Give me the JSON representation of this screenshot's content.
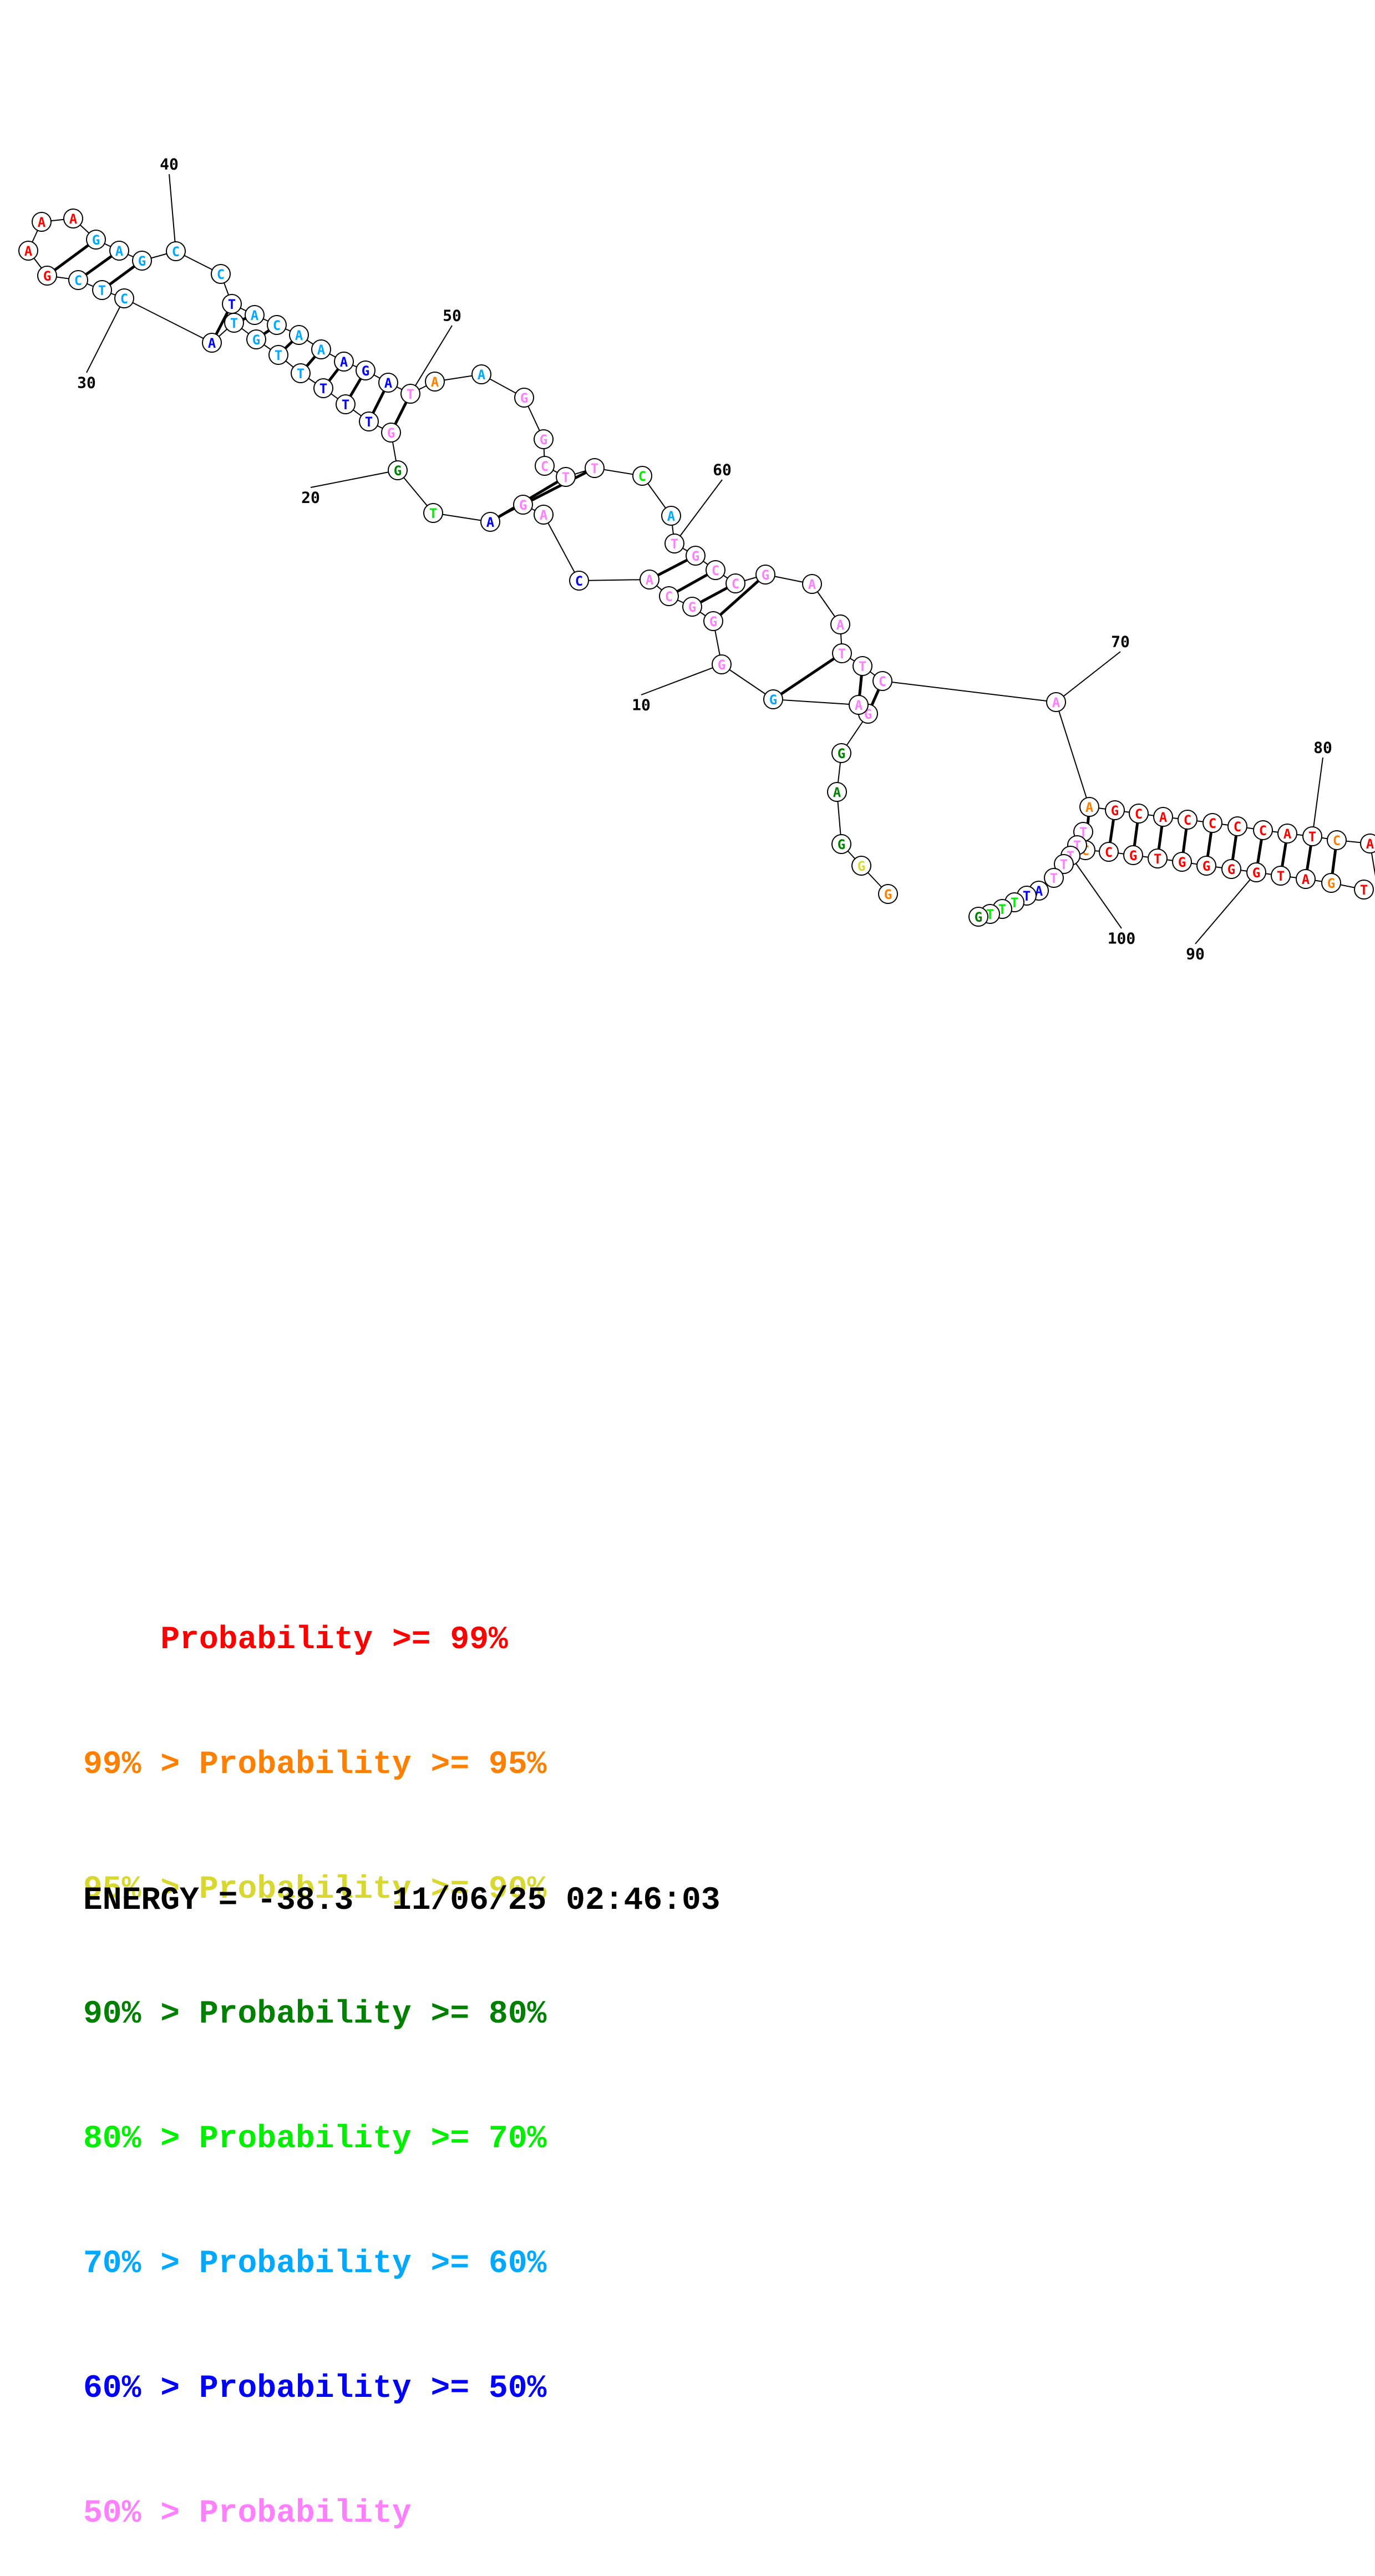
{
  "bases": [
    {
      "n": 2,
      "b": "G",
      "c": "orange"
    },
    {
      "n": 3,
      "b": "G",
      "c": "yellow"
    },
    {
      "n": 4,
      "b": "G",
      "c": "dgreen"
    },
    {
      "n": 5,
      "b": "A",
      "c": "dgreen"
    },
    {
      "n": 6,
      "b": "G",
      "c": "dgreen"
    },
    {
      "n": 7,
      "b": "G",
      "c": "pink"
    },
    {
      "n": 8,
      "b": "A",
      "c": "pink"
    },
    {
      "n": 9,
      "b": "G",
      "c": "sky"
    },
    {
      "n": 10,
      "b": "G",
      "c": "pink"
    },
    {
      "n": 11,
      "b": "G",
      "c": "pink"
    },
    {
      "n": 12,
      "b": "G",
      "c": "pink"
    },
    {
      "n": 13,
      "b": "C",
      "c": "pink"
    },
    {
      "n": 14,
      "b": "A",
      "c": "pink"
    },
    {
      "n": 15,
      "b": "C",
      "c": "blue"
    },
    {
      "n": 16,
      "b": "A",
      "c": "pink"
    },
    {
      "n": 17,
      "b": "G",
      "c": "pink"
    },
    {
      "n": 18,
      "b": "A",
      "c": "blue"
    },
    {
      "n": 19,
      "b": "T",
      "c": "green"
    },
    {
      "n": 20,
      "b": "G",
      "c": "dgreen"
    },
    {
      "n": 21,
      "b": "G",
      "c": "pink"
    },
    {
      "n": 22,
      "b": "T",
      "c": "blue"
    },
    {
      "n": 23,
      "b": "T",
      "c": "blue"
    },
    {
      "n": 24,
      "b": "T",
      "c": "blue"
    },
    {
      "n": 25,
      "b": "T",
      "c": "sky"
    },
    {
      "n": 26,
      "b": "T",
      "c": "sky"
    },
    {
      "n": 27,
      "b": "G",
      "c": "sky"
    },
    {
      "n": 28,
      "b": "T",
      "c": "sky"
    },
    {
      "n": 29,
      "b": "A",
      "c": "blue"
    },
    {
      "n": 30,
      "b": "C",
      "c": "sky"
    },
    {
      "n": 31,
      "b": "T",
      "c": "sky"
    },
    {
      "n": 32,
      "b": "C",
      "c": "sky"
    },
    {
      "n": 33,
      "b": "G",
      "c": "red"
    },
    {
      "n": 34,
      "b": "A",
      "c": "red"
    },
    {
      "n": 35,
      "b": "A",
      "c": "red"
    },
    {
      "n": 36,
      "b": "A",
      "c": "red"
    },
    {
      "n": 37,
      "b": "G",
      "c": "sky"
    },
    {
      "n": 38,
      "b": "A",
      "c": "sky"
    },
    {
      "n": 39,
      "b": "G",
      "c": "sky"
    },
    {
      "n": 40,
      "b": "C",
      "c": "sky"
    },
    {
      "n": 41,
      "b": "C",
      "c": "sky"
    },
    {
      "n": 42,
      "b": "T",
      "c": "blue"
    },
    {
      "n": 43,
      "b": "A",
      "c": "sky"
    },
    {
      "n": 44,
      "b": "C",
      "c": "sky"
    },
    {
      "n": 45,
      "b": "A",
      "c": "sky"
    },
    {
      "n": 46,
      "b": "A",
      "c": "sky"
    },
    {
      "n": 47,
      "b": "A",
      "c": "blue"
    },
    {
      "n": 48,
      "b": "G",
      "c": "blue"
    },
    {
      "n": 49,
      "b": "A",
      "c": "blue"
    },
    {
      "n": 50,
      "b": "T",
      "c": "pink"
    },
    {
      "n": 51,
      "b": "A",
      "c": "orange"
    },
    {
      "n": 52,
      "b": "A",
      "c": "sky"
    },
    {
      "n": 53,
      "b": "G",
      "c": "pink"
    },
    {
      "n": 54,
      "b": "G",
      "c": "pink"
    },
    {
      "n": 55,
      "b": "C",
      "c": "pink"
    },
    {
      "n": 56,
      "b": "T",
      "c": "pink"
    },
    {
      "n": 57,
      "b": "T",
      "c": "pink"
    },
    {
      "n": 58,
      "b": "C",
      "c": "green"
    },
    {
      "n": 59,
      "b": "A",
      "c": "sky"
    },
    {
      "n": 60,
      "b": "T",
      "c": "pink"
    },
    {
      "n": 61,
      "b": "G",
      "c": "pink"
    },
    {
      "n": 62,
      "b": "C",
      "c": "pink"
    },
    {
      "n": 63,
      "b": "C",
      "c": "pink"
    },
    {
      "n": 64,
      "b": "G",
      "c": "pink"
    },
    {
      "n": 65,
      "b": "A",
      "c": "pink"
    },
    {
      "n": 66,
      "b": "A",
      "c": "pink"
    },
    {
      "n": 67,
      "b": "T",
      "c": "pink"
    },
    {
      "n": 68,
      "b": "T",
      "c": "pink"
    },
    {
      "n": 69,
      "b": "C",
      "c": "pink"
    },
    {
      "n": 70,
      "b": "A",
      "c": "pink"
    },
    {
      "n": 71,
      "b": "A",
      "c": "orange"
    },
    {
      "n": 72,
      "b": "G",
      "c": "red"
    },
    {
      "n": 73,
      "b": "C",
      "c": "red"
    },
    {
      "n": 74,
      "b": "A",
      "c": "red"
    },
    {
      "n": 75,
      "b": "C",
      "c": "red"
    },
    {
      "n": 76,
      "b": "C",
      "c": "red"
    },
    {
      "n": 77,
      "b": "C",
      "c": "red"
    },
    {
      "n": 78,
      "b": "C",
      "c": "red"
    },
    {
      "n": 79,
      "b": "A",
      "c": "red"
    },
    {
      "n": 80,
      "b": "T",
      "c": "red"
    },
    {
      "n": 81,
      "b": "C",
      "c": "orange"
    },
    {
      "n": 82,
      "b": "A",
      "c": "red"
    },
    {
      "n": 86,
      "b": "T",
      "c": "red"
    },
    {
      "n": 87,
      "b": "G",
      "c": "orange"
    },
    {
      "n": 88,
      "b": "A",
      "c": "red"
    },
    {
      "n": 89,
      "b": "T",
      "c": "red"
    },
    {
      "n": 90,
      "b": "G",
      "c": "red"
    },
    {
      "n": 91,
      "b": "G",
      "c": "red"
    },
    {
      "n": 92,
      "b": "G",
      "c": "red"
    },
    {
      "n": 93,
      "b": "G",
      "c": "red"
    },
    {
      "n": 94,
      "b": "T",
      "c": "red"
    },
    {
      "n": 95,
      "b": "G",
      "c": "red"
    },
    {
      "n": 96,
      "b": "C",
      "c": "red"
    },
    {
      "n": 97,
      "b": "C",
      "c": "orange"
    },
    {
      "n": 98,
      "b": "T",
      "c": "pink"
    },
    {
      "n": 99,
      "b": "T",
      "c": "pink"
    },
    {
      "n": 100,
      "b": "T",
      "c": "pink"
    },
    {
      "n": 101,
      "b": "T",
      "c": "pink"
    },
    {
      "n": 102,
      "b": "T",
      "c": "pink"
    },
    {
      "n": 103,
      "b": "A",
      "c": "blue"
    },
    {
      "n": 104,
      "b": "T",
      "c": "blue"
    },
    {
      "n": 105,
      "b": "T",
      "c": "green"
    },
    {
      "n": 106,
      "b": "T",
      "c": "green"
    },
    {
      "n": 107,
      "b": "T",
      "c": "green"
    },
    {
      "n": 108,
      "b": "G",
      "c": "dgreen"
    }
  ],
  "pairs": [
    [
      7,
      69
    ],
    [
      8,
      68
    ],
    [
      9,
      67
    ],
    [
      11,
      64
    ],
    [
      12,
      63
    ],
    [
      13,
      62
    ],
    [
      14,
      61
    ],
    [
      17,
      57
    ],
    [
      18,
      56
    ],
    [
      21,
      50
    ],
    [
      22,
      49
    ],
    [
      23,
      48
    ],
    [
      24,
      47
    ],
    [
      25,
      46
    ],
    [
      26,
      45
    ],
    [
      27,
      44
    ],
    [
      28,
      43
    ],
    [
      29,
      42
    ],
    [
      31,
      39
    ],
    [
      32,
      38
    ],
    [
      33,
      37
    ],
    [
      71,
      97
    ],
    [
      72,
      96
    ],
    [
      73,
      95
    ],
    [
      74,
      94
    ],
    [
      75,
      93
    ],
    [
      76,
      92
    ],
    [
      77,
      91
    ],
    [
      78,
      90
    ],
    [
      79,
      89
    ],
    [
      80,
      88
    ],
    [
      81,
      87
    ]
  ],
  "position_labels": [
    {
      "n": 10,
      "text": "10"
    },
    {
      "n": 20,
      "text": "20"
    },
    {
      "n": 30,
      "text": "30"
    },
    {
      "n": 40,
      "text": "40"
    },
    {
      "n": 50,
      "text": "50"
    },
    {
      "n": 60,
      "text": "60"
    },
    {
      "n": 70,
      "text": "70"
    },
    {
      "n": 80,
      "text": "80"
    },
    {
      "n": 90,
      "text": "90"
    },
    {
      "n": 100,
      "text": "100"
    }
  ],
  "colors": {
    "red": "#ff0000",
    "orange": "#ff8000",
    "yellow": "#d8d830",
    "dgreen": "#008000",
    "green": "#00ee00",
    "sky": "#00a8ff",
    "blue": "#0000ff",
    "pink": "#ff80ff",
    "black": "#000000"
  },
  "legend": [
    {
      "prefix": "    ",
      "text": "Probability >= 99%",
      "c": "red"
    },
    {
      "prefix": "99% > ",
      "text": "Probability >= 95%",
      "c": "orange"
    },
    {
      "prefix": "95% > ",
      "text": "Probability >= 90%",
      "c": "yellow"
    },
    {
      "prefix": "90% > ",
      "text": "Probability >= 80%",
      "c": "dgreen"
    },
    {
      "prefix": "80% > ",
      "text": "Probability >= 70%",
      "c": "green"
    },
    {
      "prefix": "70% > ",
      "text": "Probability >= 60%",
      "c": "sky"
    },
    {
      "prefix": "60% > ",
      "text": "Probability >= 50%",
      "c": "blue"
    },
    {
      "prefix": "50% > ",
      "text": "Probability",
      "c": "pink"
    }
  ],
  "energy_text": "ENERGY = -38.3  11/06/25 02:46:03"
}
